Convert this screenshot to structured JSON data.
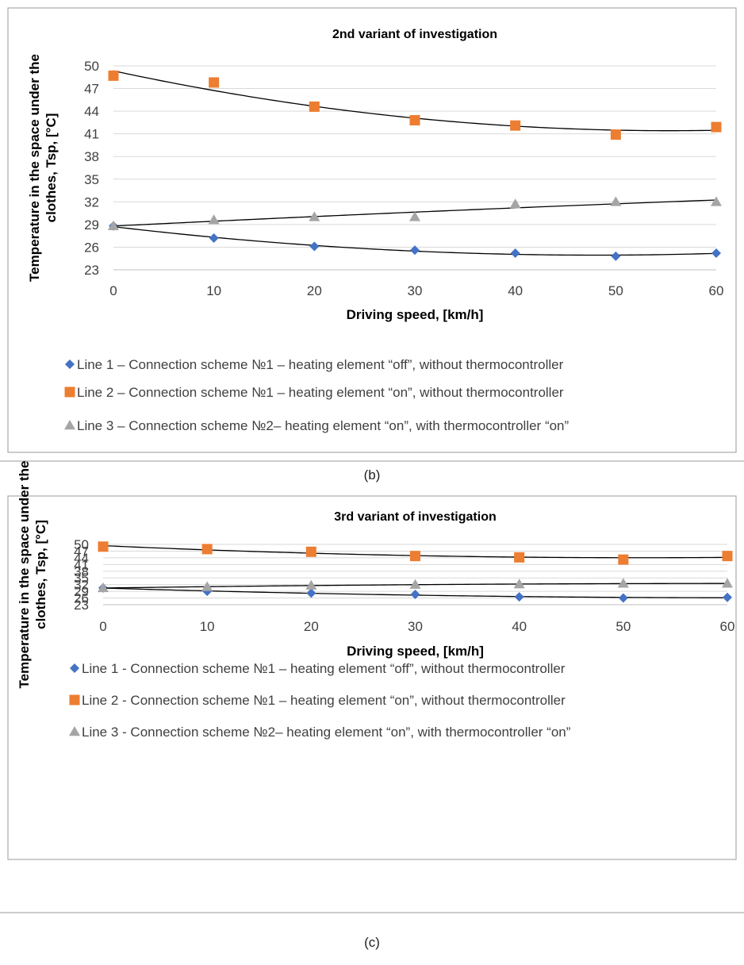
{
  "chart_data": [
    {
      "type": "scatter",
      "title": "2nd variant of investigation",
      "xlabel": "Driving speed, [km/h]",
      "ylabel": [
        "Temperature in the space under the",
        "clothes, Tsp, [°C]"
      ],
      "x": [
        0,
        10,
        20,
        30,
        40,
        50,
        60
      ],
      "xlim": [
        0,
        60
      ],
      "ylim": [
        23,
        50
      ],
      "yticks": [
        23,
        26,
        29,
        32,
        35,
        38,
        41,
        44,
        47,
        50
      ],
      "xticks": [
        0,
        10,
        20,
        30,
        40,
        50,
        60
      ],
      "grid": true,
      "legend_position": "bottom",
      "trendlines": "polynomial",
      "caption": "(b)",
      "series": [
        {
          "name": "Line 1 – Connection scheme №1 – heating element “off”, without thermocontroller",
          "marker": "diamond",
          "color": "#4472C4",
          "values": [
            28.8,
            27.2,
            26.1,
            25.6,
            25.2,
            24.8,
            25.2
          ]
        },
        {
          "name": "Line 2 – Connection scheme №1 – heating element “on”, without thermocontroller",
          "marker": "square",
          "color": "#ED7D31",
          "values": [
            48.7,
            47.8,
            44.6,
            42.8,
            42.1,
            40.9,
            41.9
          ]
        },
        {
          "name": "Line 3 – Connection scheme №2– heating element “on”, with thermocontroller “on”",
          "marker": "triangle",
          "color": "#A5A5A5",
          "values": [
            28.8,
            29.6,
            30.0,
            30.0,
            31.7,
            32.0,
            32.0
          ]
        }
      ]
    },
    {
      "type": "scatter",
      "title": "3rd variant of investigation",
      "xlabel": "Driving speed, [km/h]",
      "ylabel": [
        "Temperature in the space under the",
        "clothes, Tsp, [°C]"
      ],
      "x": [
        0,
        10,
        20,
        30,
        40,
        50,
        60
      ],
      "xlim": [
        0,
        60
      ],
      "ylim": [
        23,
        50
      ],
      "yticks": [
        23,
        26,
        29,
        32,
        35,
        38,
        41,
        44,
        47,
        50
      ],
      "xticks": [
        0,
        10,
        20,
        30,
        40,
        50,
        60
      ],
      "grid": true,
      "legend_position": "bottom",
      "trendlines": "polynomial",
      "caption": "(c)",
      "series": [
        {
          "name": "Line 1 - Connection scheme №1 – heating element “off”, without thermocontroller",
          "marker": "diamond",
          "color": "#4472C4",
          "values": [
            30.5,
            29.0,
            28.2,
            27.6,
            26.5,
            26.0,
            26.3
          ]
        },
        {
          "name": "Line 2 - Connection scheme №1 – heating element “on”, without thermocontroller",
          "marker": "square",
          "color": "#ED7D31",
          "values": [
            49.0,
            47.9,
            46.7,
            44.8,
            44.2,
            43.2,
            44.8
          ]
        },
        {
          "name": "Line 3 - Connection scheme №2– heating element “on”, with thermocontroller “on”",
          "marker": "triangle",
          "color": "#A5A5A5",
          "values": [
            30.5,
            31.0,
            31.6,
            32.0,
            32.2,
            32.5,
            32.5
          ]
        }
      ]
    }
  ]
}
